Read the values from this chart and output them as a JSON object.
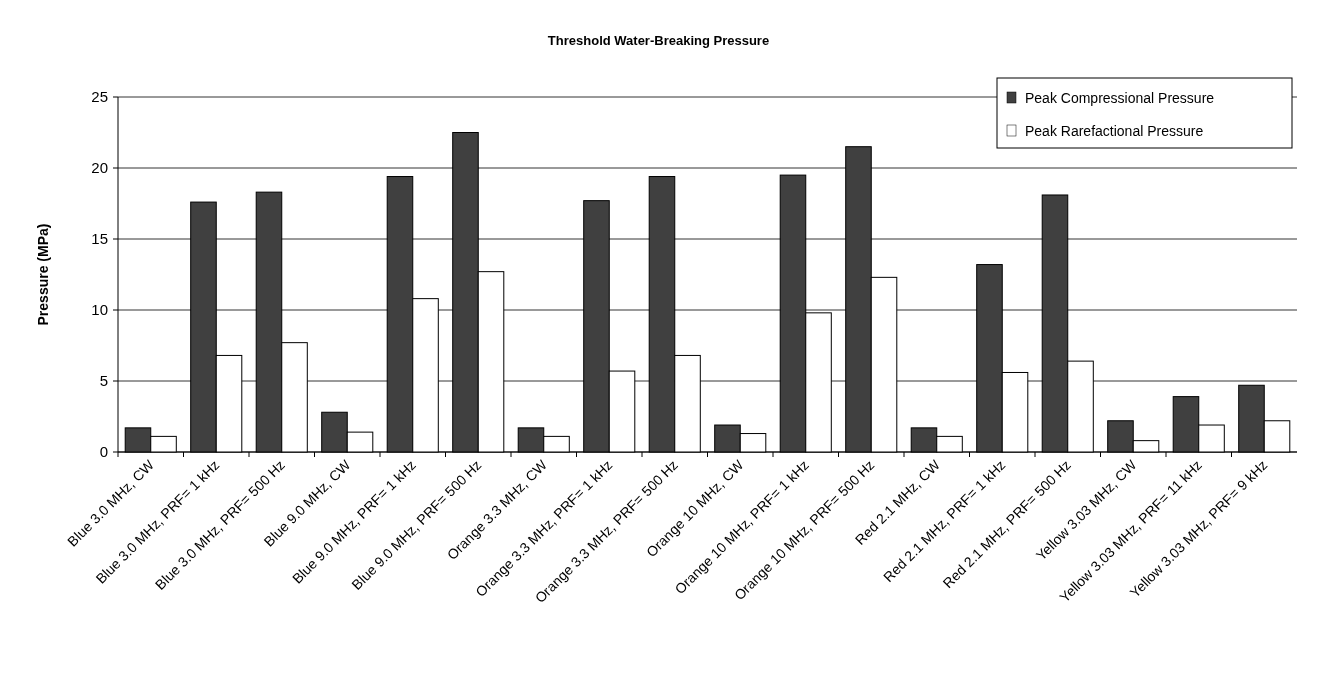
{
  "chart_data": {
    "type": "bar",
    "title": "Threshold Water-Breaking Pressure",
    "ylabel": "Pressure (MPa)",
    "categories": [
      "Blue 3.0 MHz, CW",
      "Blue 3.0 MHz, PRF= 1 kHz",
      "Blue 3.0 MHz, PRF= 500 Hz",
      "Blue 9.0 MHz, CW",
      "Blue 9.0 MHz, PRF= 1 kHz",
      "Blue 9.0 MHz, PRF= 500 Hz",
      "Orange 3.3 MHz, CW",
      "Orange 3.3 MHz, PRF= 1 kHz",
      "Orange 3.3 MHz, PRF= 500 Hz",
      "Orange 10 MHz, CW",
      "Orange 10 MHz, PRF= 1 kHz",
      "Orange 10 MHz, PRF= 500 Hz",
      "Red 2.1 MHz, CW",
      "Red 2.1 MHz, PRF= 1 kHz",
      "Red 2.1 MHz, PRF= 500 Hz",
      "Yellow 3.03 MHz, CW",
      "Yellow 3.03 MHz, PRF= 11 kHz",
      "Yellow 3.03 MHz, PRF= 9 kHz"
    ],
    "series": [
      {
        "name": "Peak Compressional Pressure",
        "color": "#404040",
        "values": [
          1.7,
          17.6,
          18.3,
          2.8,
          19.4,
          22.5,
          1.7,
          17.7,
          19.4,
          1.9,
          19.5,
          21.5,
          1.7,
          13.2,
          18.1,
          2.2,
          3.9,
          4.7
        ]
      },
      {
        "name": "Peak Rarefactional Pressure",
        "color": "#ffffff",
        "values": [
          1.1,
          6.8,
          7.7,
          1.4,
          10.8,
          12.7,
          1.1,
          5.7,
          6.8,
          1.3,
          9.8,
          12.3,
          1.1,
          5.6,
          6.4,
          0.8,
          1.9,
          2.2
        ]
      }
    ],
    "ylim": [
      0,
      25
    ],
    "yticks": [
      0,
      5,
      10,
      15,
      20,
      25
    ],
    "grid": "y",
    "legend": "top right"
  }
}
